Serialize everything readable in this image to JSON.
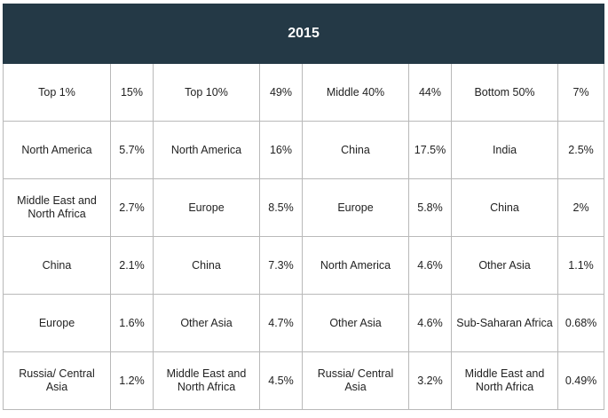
{
  "title": "2015",
  "rows": [
    [
      {
        "label": "Top 1%",
        "value": "15%"
      },
      {
        "label": "Top 10%",
        "value": "49%"
      },
      {
        "label": "Middle 40%",
        "value": "44%"
      },
      {
        "label": "Bottom 50%",
        "value": "7%"
      }
    ],
    [
      {
        "label": "North America",
        "value": "5.7%"
      },
      {
        "label": "North America",
        "value": "16%"
      },
      {
        "label": "China",
        "value": "17.5%"
      },
      {
        "label": "India",
        "value": "2.5%"
      }
    ],
    [
      {
        "label": "Middle East and North Africa",
        "value": "2.7%"
      },
      {
        "label": "Europe",
        "value": "8.5%"
      },
      {
        "label": "Europe",
        "value": "5.8%"
      },
      {
        "label": "China",
        "value": "2%"
      }
    ],
    [
      {
        "label": "China",
        "value": "2.1%"
      },
      {
        "label": "China",
        "value": "7.3%"
      },
      {
        "label": "North America",
        "value": "4.6%"
      },
      {
        "label": "Other Asia",
        "value": "1.1%"
      }
    ],
    [
      {
        "label": "Europe",
        "value": "1.6%"
      },
      {
        "label": "Other Asia",
        "value": "4.7%"
      },
      {
        "label": "Other Asia",
        "value": "4.6%"
      },
      {
        "label": "Sub-Saharan Africa",
        "value": "0.68%"
      }
    ],
    [
      {
        "label": "Russia/ Central Asia",
        "value": "1.2%"
      },
      {
        "label": "Middle East and North Africa",
        "value": "4.5%"
      },
      {
        "label": "Russia/ Central Asia",
        "value": "3.2%"
      },
      {
        "label": "Middle East and North Africa",
        "value": "0.49%"
      }
    ]
  ]
}
